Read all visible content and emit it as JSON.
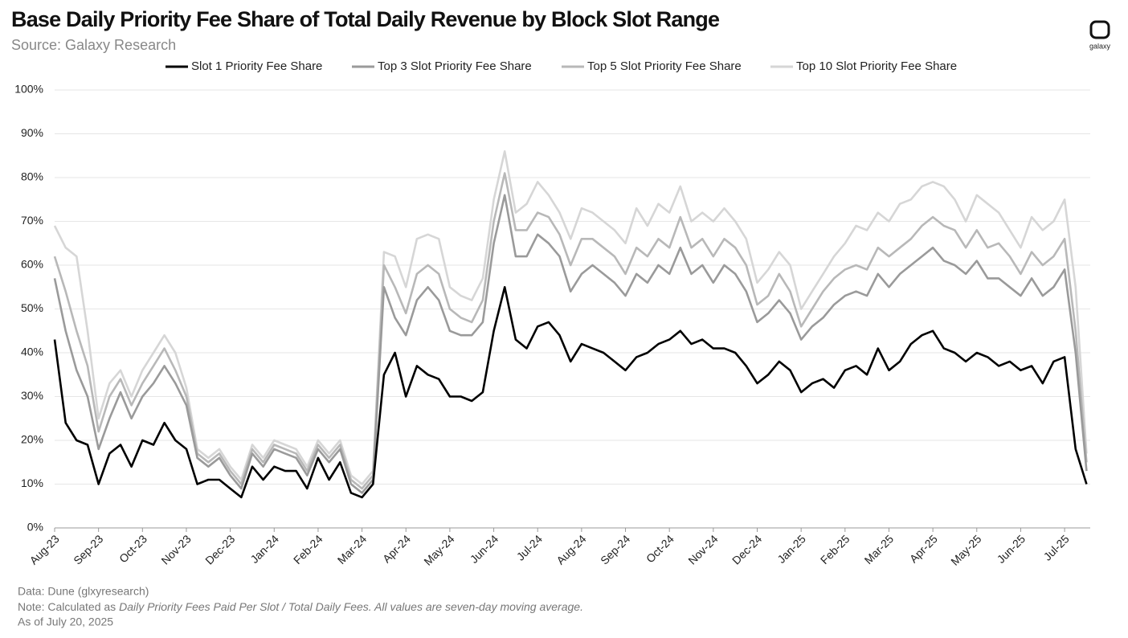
{
  "chart_data": {
    "type": "line",
    "title": "Base Daily Priority Fee Share of Total Daily Revenue by Block Slot Range",
    "subtitle": "Source: Galaxy Research",
    "logo": "galaxy",
    "footnotes": {
      "data": "Data: Dune (glxyresearch)",
      "note_prefix": "Note: Calculated as ",
      "note_italic": "Daily Priority Fees Paid Per Slot / Total Daily Fees. All values are seven-day moving average.",
      "asof": "As of July 20, 2025"
    },
    "categories": [
      "Aug-23",
      null,
      null,
      null,
      "Sep-23",
      null,
      null,
      null,
      "Oct-23",
      null,
      null,
      null,
      "Nov-23",
      null,
      null,
      null,
      "Dec-23",
      null,
      null,
      null,
      "Jan-24",
      null,
      null,
      null,
      "Feb-24",
      null,
      null,
      null,
      "Mar-24",
      null,
      null,
      null,
      "Apr-24",
      null,
      null,
      null,
      "May-24",
      null,
      null,
      null,
      "Jun-24",
      null,
      null,
      null,
      "Jul-24",
      null,
      null,
      null,
      "Aug-24",
      null,
      null,
      null,
      "Sep-24",
      null,
      null,
      null,
      "Oct-24",
      null,
      null,
      null,
      "Nov-24",
      null,
      null,
      null,
      "Dec-24",
      null,
      null,
      null,
      "Jan-25",
      null,
      null,
      null,
      "Feb-25",
      null,
      null,
      null,
      "Mar-25",
      null,
      null,
      null,
      "Apr-25",
      null,
      null,
      null,
      "May-25",
      null,
      null,
      null,
      "Jun-25",
      null,
      null,
      null,
      "Jul-25",
      null,
      null
    ],
    "series": [
      {
        "name": "Slot 1 Priority Fee Share",
        "color": "#000000",
        "values": [
          43,
          24,
          20,
          19,
          10,
          17,
          19,
          14,
          20,
          19,
          24,
          20,
          18,
          10,
          11,
          11,
          9,
          7,
          14,
          11,
          14,
          13,
          13,
          9,
          16,
          11,
          15,
          8,
          7,
          10,
          35,
          40,
          30,
          37,
          35,
          34,
          30,
          30,
          29,
          31,
          45,
          55,
          43,
          41,
          46,
          47,
          44,
          38,
          42,
          41,
          40,
          38,
          36,
          39,
          40,
          42,
          43,
          45,
          42,
          43,
          41,
          41,
          40,
          37,
          33,
          35,
          38,
          36,
          31,
          33,
          34,
          32,
          36,
          37,
          35,
          41,
          36,
          38,
          42,
          44,
          45,
          41,
          40,
          38,
          40,
          39,
          37,
          38,
          36,
          37,
          33,
          38,
          39,
          18,
          10
        ]
      },
      {
        "name": "Top 3 Slot Priority Fee Share",
        "color": "#9a9a9a",
        "values": [
          57,
          45,
          36,
          30,
          18,
          25,
          31,
          25,
          30,
          33,
          37,
          33,
          28,
          16,
          14,
          16,
          12,
          9,
          17,
          14,
          18,
          17,
          16,
          12,
          18,
          15,
          18,
          10,
          8,
          11,
          55,
          48,
          44,
          52,
          55,
          52,
          45,
          44,
          44,
          47,
          65,
          76,
          62,
          62,
          67,
          65,
          62,
          54,
          58,
          60,
          58,
          56,
          53,
          58,
          56,
          60,
          58,
          64,
          58,
          60,
          56,
          60,
          58,
          54,
          47,
          49,
          52,
          49,
          43,
          46,
          48,
          51,
          53,
          54,
          53,
          58,
          55,
          58,
          60,
          62,
          64,
          61,
          60,
          58,
          61,
          57,
          57,
          55,
          53,
          57,
          53,
          55,
          59,
          40,
          13
        ]
      },
      {
        "name": "Top 5 Slot Priority Fee Share",
        "color": "#b8b8b8",
        "values": [
          62,
          54,
          45,
          37,
          22,
          30,
          34,
          28,
          33,
          37,
          41,
          36,
          30,
          17,
          15,
          17,
          13,
          10,
          18,
          15,
          19,
          18,
          17,
          13,
          19,
          16,
          19,
          11,
          9,
          12,
          60,
          55,
          49,
          58,
          60,
          58,
          50,
          48,
          47,
          52,
          70,
          81,
          68,
          68,
          72,
          71,
          67,
          60,
          66,
          66,
          64,
          62,
          58,
          64,
          62,
          66,
          64,
          71,
          64,
          66,
          62,
          66,
          64,
          60,
          51,
          53,
          58,
          54,
          46,
          50,
          54,
          57,
          59,
          60,
          59,
          64,
          62,
          64,
          66,
          69,
          71,
          69,
          68,
          64,
          68,
          64,
          65,
          62,
          58,
          63,
          60,
          62,
          66,
          45,
          15
        ]
      },
      {
        "name": "Top 10 Slot Priority Fee Share",
        "color": "#d6d6d6",
        "values": [
          69,
          64,
          62,
          45,
          25,
          33,
          36,
          30,
          36,
          40,
          44,
          40,
          32,
          18,
          16,
          18,
          14,
          11,
          19,
          16,
          20,
          19,
          18,
          14,
          20,
          17,
          20,
          12,
          10,
          13,
          63,
          62,
          55,
          66,
          67,
          66,
          55,
          53,
          52,
          57,
          75,
          86,
          72,
          74,
          79,
          76,
          72,
          66,
          73,
          72,
          70,
          68,
          65,
          73,
          69,
          74,
          72,
          78,
          70,
          72,
          70,
          73,
          70,
          66,
          56,
          59,
          63,
          60,
          50,
          54,
          58,
          62,
          65,
          69,
          68,
          72,
          70,
          74,
          75,
          78,
          79,
          78,
          75,
          70,
          76,
          74,
          72,
          68,
          64,
          71,
          68,
          70,
          75,
          55,
          17
        ]
      }
    ],
    "ylim": [
      0,
      100
    ],
    "yticks": [
      {
        "value": 0,
        "label": "0%"
      },
      {
        "value": 10,
        "label": "10%"
      },
      {
        "value": 20,
        "label": "20%"
      },
      {
        "value": 30,
        "label": "30%"
      },
      {
        "value": 40,
        "label": "40%"
      },
      {
        "value": 50,
        "label": "50%"
      },
      {
        "value": 60,
        "label": "60%"
      },
      {
        "value": 70,
        "label": "70%"
      },
      {
        "value": 80,
        "label": "80%"
      },
      {
        "value": 90,
        "label": "90%"
      },
      {
        "value": 100,
        "label": "100%"
      }
    ],
    "grid": true,
    "legend": "top"
  }
}
